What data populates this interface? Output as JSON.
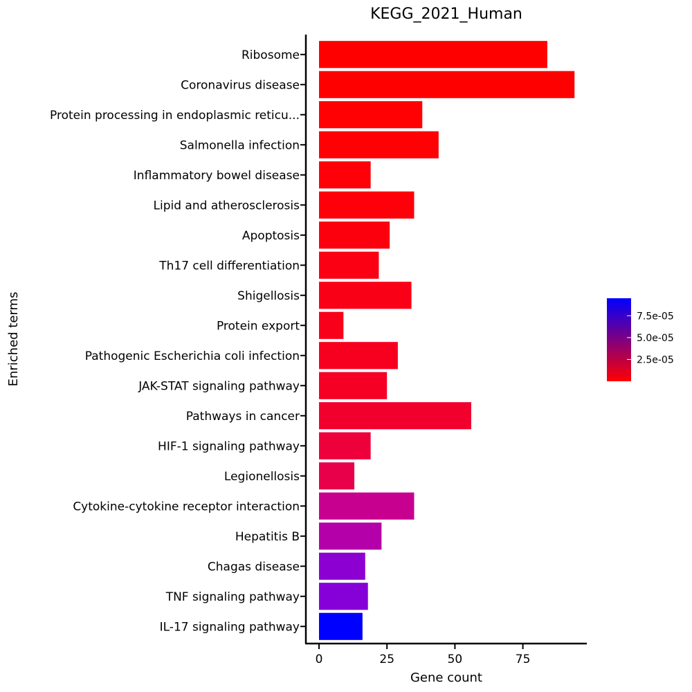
{
  "chart_data": {
    "type": "bar",
    "orientation": "horizontal",
    "title": "KEGG_2021_Human",
    "xlabel": "Gene count",
    "ylabel": "Enriched terms",
    "xlim": [
      -4,
      95
    ],
    "xticks": [
      "0",
      "25",
      "50",
      "75"
    ],
    "xtick_values": [
      0,
      25,
      50,
      75
    ],
    "categories": [
      "Ribosome",
      "Coronavirus disease",
      "Protein processing in endoplasmic reticu...",
      "Salmonella infection",
      "Inflammatory bowel disease",
      "Lipid and atherosclerosis",
      "Apoptosis",
      "Th17 cell differentiation",
      "Shigellosis",
      "Protein export",
      "Pathogenic Escherichia coli infection",
      "JAK-STAT signaling pathway",
      "Pathways in cancer",
      "HIF-1 signaling pathway",
      "Legionellosis",
      "Cytokine-cytokine receptor interaction",
      "Hepatitis B",
      "Chagas disease",
      "TNF signaling pathway",
      "IL-17 signaling pathway"
    ],
    "values": [
      84,
      94,
      38,
      44,
      19,
      35,
      26,
      22,
      34,
      9,
      29,
      25,
      56,
      19,
      13,
      35,
      23,
      17,
      18,
      16
    ],
    "bar_colors": [
      "#ff0000",
      "#ff0000",
      "#ff0003",
      "#ff0005",
      "#fe0008",
      "#fd000a",
      "#fc000e",
      "#fb0012",
      "#fa0016",
      "#f9001a",
      "#f7001f",
      "#f50024",
      "#f2002d",
      "#ee003a",
      "#e8004a",
      "#c80090",
      "#b400a8",
      "#8c00d2",
      "#8600d8",
      "#0000ff"
    ],
    "colorbar": {
      "ticks": [
        "7.5e-05",
        "5.0e-05",
        "2.5e-05"
      ],
      "tick_values": [
        7.5e-05,
        5e-05,
        2.5e-05
      ],
      "range": [
        0.0,
        9.5e-05
      ],
      "colors": [
        "#ff0000",
        "#0000ff"
      ]
    },
    "grid": false,
    "legend": "right"
  }
}
